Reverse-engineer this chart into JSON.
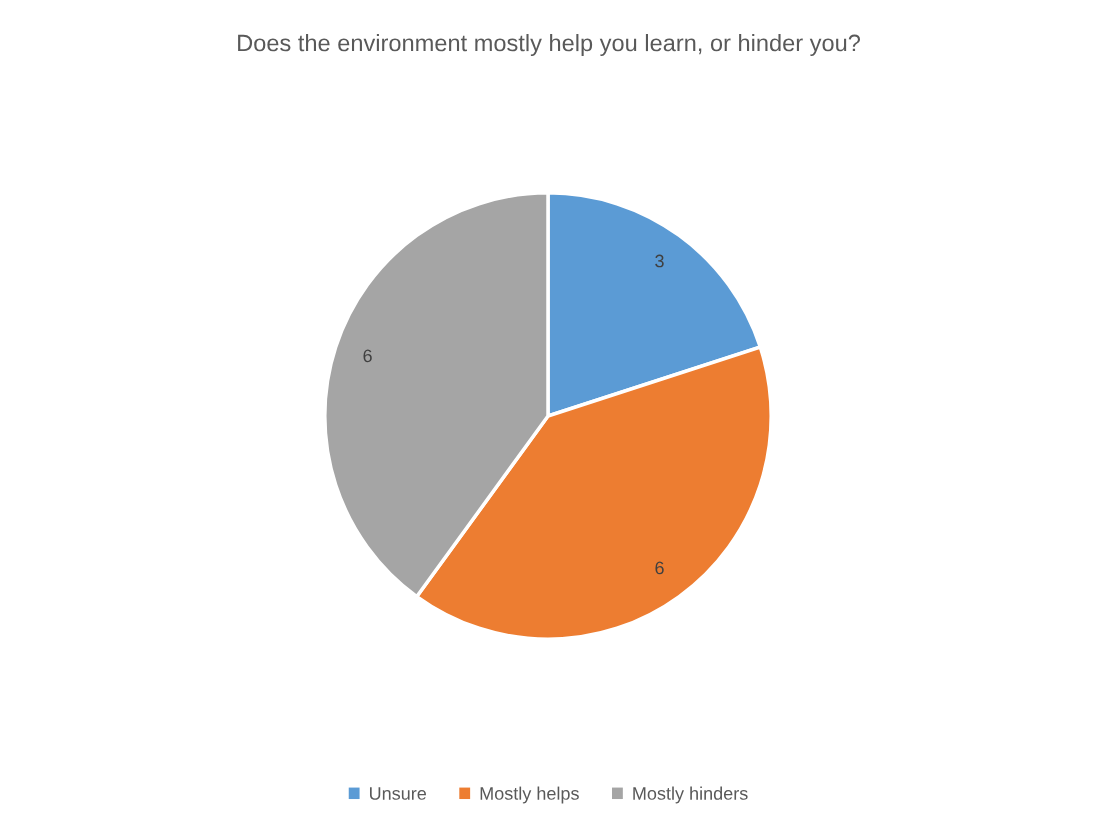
{
  "chart_data": {
    "type": "pie",
    "title": "Does the environment mostly help you learn, or hinder you?",
    "categories": [
      "Unsure",
      "Mostly helps",
      "Mostly hinders"
    ],
    "values": [
      3,
      6,
      6
    ],
    "colors": [
      "#5b9bd5",
      "#ed7d31",
      "#a5a5a5"
    ],
    "data_labels": true,
    "legend": "bottom"
  }
}
